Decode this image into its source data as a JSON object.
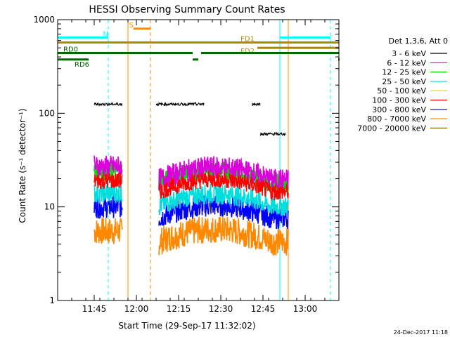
{
  "chart_data": {
    "type": "line",
    "title": "HESSI Observing Summary Count Rates",
    "xlabel": "Start Time (29-Sep-17 11:32:02)",
    "ylabel": "Count Rate (s⁻¹ detector⁻¹)",
    "x_axis": {
      "min": "11:32",
      "max": "13:12",
      "ticks": [
        "11:45",
        "12:00",
        "12:15",
        "12:30",
        "12:45",
        "13:00"
      ]
    },
    "y_axis": {
      "scale": "log",
      "min": 1,
      "max": 1000,
      "ticks": [
        "1",
        "10",
        "100",
        "1000"
      ]
    },
    "legend_title": "Det 1,3,6, Att 0",
    "legend_position": "right",
    "series": [
      {
        "name": "3 - 6 keV",
        "color": "#000000",
        "segments": [
          {
            "from": "11:45",
            "to": "11:55",
            "level": 125
          },
          {
            "from": "12:07",
            "to": "12:24",
            "level": 125
          },
          {
            "from": "12:41",
            "to": "12:44",
            "level": 125
          },
          {
            "from": "12:44",
            "to": "12:53",
            "level": 60
          }
        ]
      },
      {
        "name": "6 - 12 keV",
        "color": "#dd00dd",
        "segments": [
          {
            "from": "11:45",
            "to": "11:55",
            "level": 27
          },
          {
            "from": "12:08",
            "to": "12:54",
            "level": 23
          }
        ]
      },
      {
        "name": "12 - 25 keV",
        "color": "#00dd00",
        "segments": [
          {
            "from": "11:45",
            "to": "11:55",
            "level": 24
          },
          {
            "from": "12:08",
            "to": "12:54",
            "level": 21
          }
        ]
      },
      {
        "name": "25 - 50 keV",
        "color": "#00dddd",
        "segments": [
          {
            "from": "11:45",
            "to": "11:55",
            "level": 14
          },
          {
            "from": "12:08",
            "to": "12:54",
            "level": 12
          }
        ]
      },
      {
        "name": "50 - 100 keV",
        "color": "#dddd00",
        "segments": []
      },
      {
        "name": "100 - 300 keV",
        "color": "#ff0000",
        "segments": [
          {
            "from": "11:45",
            "to": "11:55",
            "level": 19
          },
          {
            "from": "12:08",
            "to": "12:54",
            "level": 17
          }
        ]
      },
      {
        "name": "300 - 800 keV",
        "color": "#0000ff",
        "segments": [
          {
            "from": "11:45",
            "to": "11:55",
            "level": 10
          },
          {
            "from": "12:08",
            "to": "12:54",
            "level": 9
          }
        ]
      },
      {
        "name": "800 - 7000 keV",
        "color": "#ff8800",
        "segments": [
          {
            "from": "11:45",
            "to": "11:55",
            "level": 5.5
          },
          {
            "from": "12:08",
            "to": "12:54",
            "level": 5
          }
        ]
      },
      {
        "name": "7000 - 20000 keV",
        "color": "#996600",
        "segments": []
      }
    ],
    "status_bars": [
      {
        "label": "N",
        "color": "#00ffff",
        "y": 645,
        "segments": [
          [
            "11:32",
            "11:50"
          ],
          [
            "12:51",
            "13:09"
          ]
        ]
      },
      {
        "label": "S",
        "color": "#ff8800",
        "y": 800,
        "segments": [
          [
            "11:59",
            "12:05"
          ]
        ]
      },
      {
        "label": "FD1",
        "color": "#aa8800",
        "y": 570,
        "segments": [
          [
            "11:32",
            "13:12"
          ]
        ]
      },
      {
        "label": "FD2",
        "color": "#aa8800",
        "y": 500,
        "segments": [
          [
            "12:43",
            "13:12"
          ]
        ]
      },
      {
        "label": "RD0",
        "color": "#006600",
        "y": 440,
        "segments": [
          [
            "11:32",
            "12:20"
          ],
          [
            "12:23",
            "13:12"
          ]
        ]
      },
      {
        "label": "RD6",
        "color": "#006600",
        "y": 375,
        "segments": [
          [
            "11:32",
            "11:43"
          ],
          [
            "12:20",
            "12:22"
          ],
          [
            "13:12",
            "13:12"
          ]
        ]
      }
    ],
    "vlines": [
      {
        "time": "11:32",
        "color": "#00ffff",
        "style": "solid"
      },
      {
        "time": "11:50",
        "color": "#00ffff",
        "style": "dashed"
      },
      {
        "time": "11:57",
        "color": "#ff8800",
        "style": "solid"
      },
      {
        "time": "12:05",
        "color": "#ff8800",
        "style": "dashed"
      },
      {
        "time": "12:51",
        "color": "#00ffff",
        "style": "solid"
      },
      {
        "time": "12:54",
        "color": "#ff8800",
        "style": "solid"
      },
      {
        "time": "13:09",
        "color": "#00ffff",
        "style": "dashed"
      }
    ]
  },
  "footer_date": "24-Dec-2017 11:18"
}
